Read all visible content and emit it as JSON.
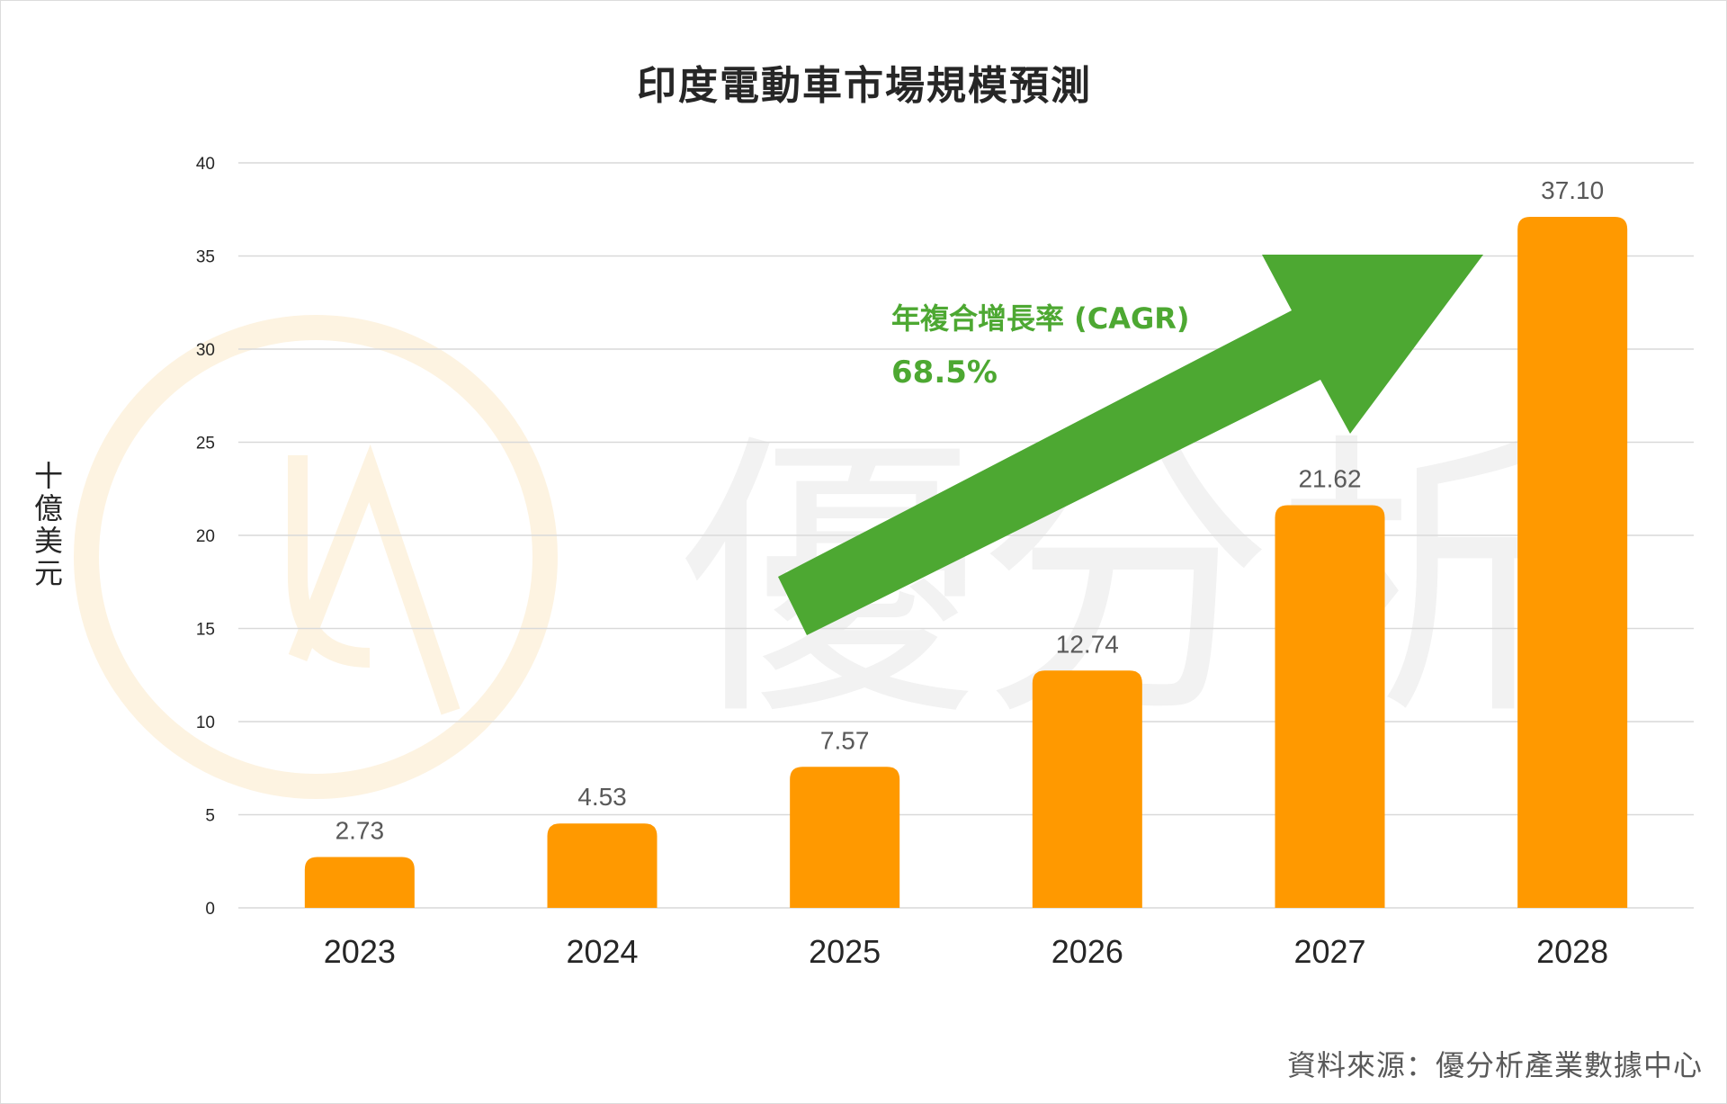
{
  "title": "印度電動車市場規模預測",
  "source": "資料來源：優分析產業數據中心",
  "watermark": "優分析",
  "annotation": {
    "label": "年複合增長率 (CAGR)",
    "value": "68.5%"
  },
  "colors": {
    "bar": "#FF9900",
    "arrow": "#4DA832",
    "grid": "#D9D9D9"
  },
  "chart_data": {
    "type": "bar",
    "title": "印度電動車市場規模預測",
    "xlabel": "",
    "ylabel": "十億美元",
    "categories": [
      "2023",
      "2024",
      "2025",
      "2026",
      "2027",
      "2028"
    ],
    "values": [
      2.73,
      4.53,
      7.57,
      12.74,
      21.62,
      37.1
    ],
    "value_labels": [
      "2.73",
      "4.53",
      "7.57",
      "12.74",
      "21.62",
      "37.10"
    ],
    "ylim": [
      0,
      40
    ],
    "yticks": [
      0,
      5,
      10,
      15,
      20,
      25,
      30,
      35,
      40
    ],
    "grid": true,
    "legend": "none"
  }
}
